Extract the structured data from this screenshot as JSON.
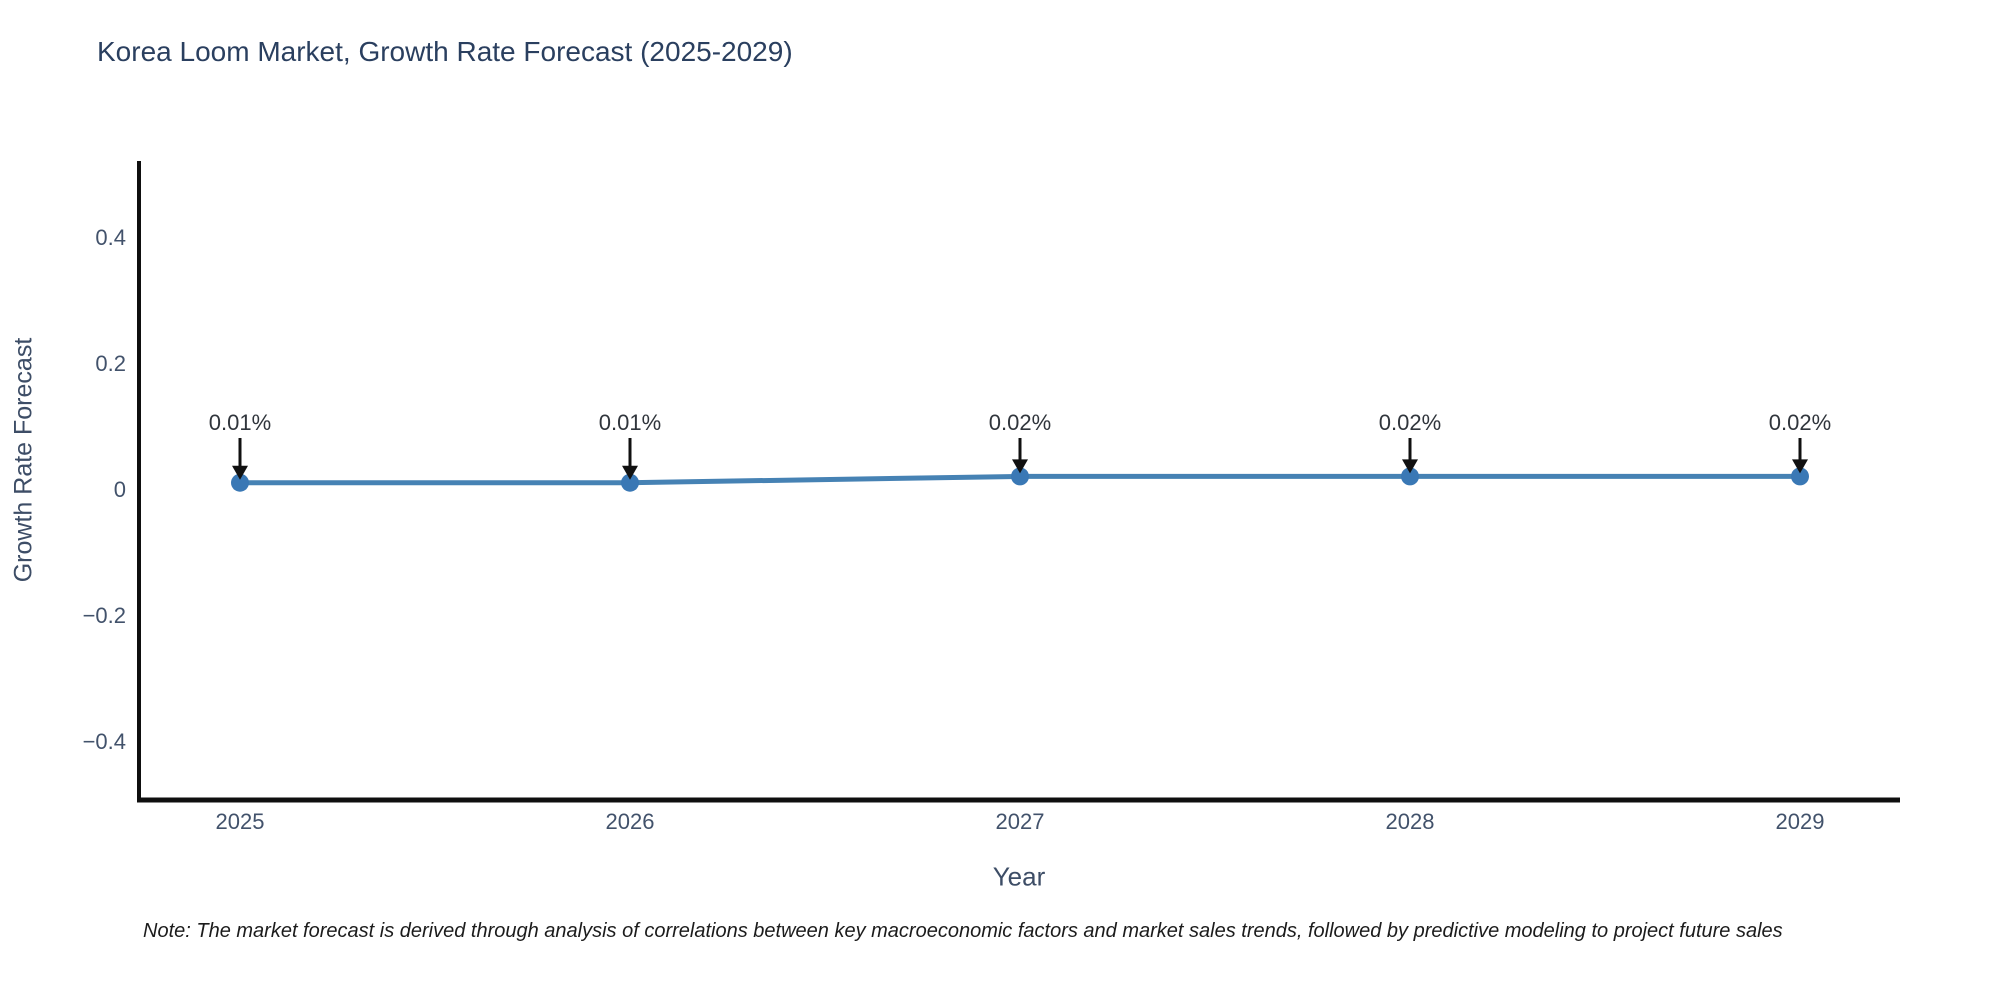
{
  "note": "Note: The market forecast is derived through analysis of correlations between key macroeconomic factors and market sales trends, followed by predictive modeling to project future sales",
  "chart_data": {
    "type": "line",
    "title": "Korea Loom Market, Growth Rate Forecast (2025-2029)",
    "xlabel": "Year",
    "ylabel": "Growth Rate Forecast",
    "x": [
      2025,
      2026,
      2027,
      2028,
      2029
    ],
    "xtick_labels": [
      "2025",
      "2026",
      "2027",
      "2028",
      "2029"
    ],
    "series": [
      {
        "name": "Growth Rate Forecast",
        "values": [
          0.01,
          0.01,
          0.02,
          0.02,
          0.02
        ]
      }
    ],
    "annotations": [
      "0.01%",
      "0.01%",
      "0.02%",
      "0.02%",
      "0.02%"
    ],
    "yticks": {
      "values": [
        0.4,
        0.2,
        0,
        -0.2,
        -0.4
      ],
      "labels": [
        "0.4",
        "0.2",
        "0",
        "−0.2",
        "−0.4"
      ]
    },
    "ylim": [
      -0.49,
      0.52
    ],
    "xlim": [
      2024.74,
      2029.26
    ],
    "grid": false,
    "legend_position": "none",
    "colors": {
      "line": "#4682b4",
      "marker": "#3a78b5",
      "axis_line": "#0f0f0f",
      "tick_label": "#42526b",
      "annotation_text": "#30353c",
      "annotation_arrow": "#111111",
      "title": "#2a3f5f",
      "background": "#ffffff"
    }
  }
}
